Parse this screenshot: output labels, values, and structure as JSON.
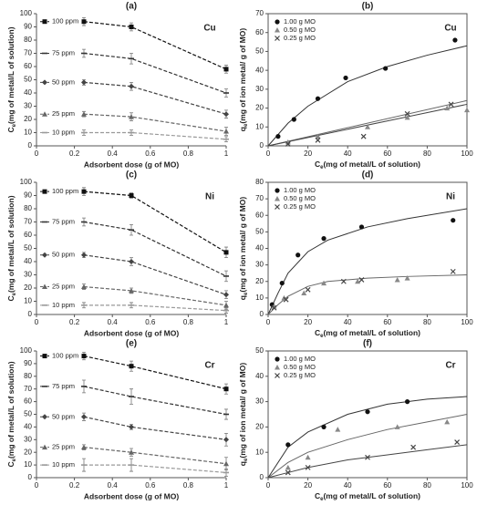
{
  "chart_data": [
    {
      "type": "line",
      "title": "(a)",
      "metal": "Cu",
      "xlabel": "Adsorbent dose (g of MO)",
      "ylabel": {
        "symbol": "C",
        "sub": "e",
        "text": "(mg of metal/L of solution)"
      },
      "x": [
        0.25,
        0.5,
        1
      ],
      "xlim": [
        0,
        1
      ],
      "xticks": [
        0,
        0.2,
        0.4,
        0.6,
        0.8,
        1
      ],
      "ylim": [
        0,
        100
      ],
      "yticks": [
        0,
        10,
        20,
        30,
        40,
        50,
        60,
        70,
        80,
        90,
        100
      ],
      "series": [
        {
          "name": "100 ppm",
          "color": "#111111",
          "marker": "square",
          "values": [
            94,
            90,
            58
          ],
          "errors": [
            3,
            3,
            3
          ]
        },
        {
          "name": "75 ppm",
          "color": "#333333",
          "marker": "dash",
          "values": [
            70,
            66,
            40
          ],
          "errors": [
            3,
            4,
            3
          ]
        },
        {
          "name": "50 ppm",
          "color": "#444444",
          "marker": "diamond",
          "values": [
            48,
            45,
            24
          ],
          "errors": [
            2,
            3,
            3
          ]
        },
        {
          "name": "25 ppm",
          "color": "#666666",
          "marker": "triangle",
          "values": [
            24,
            22,
            11
          ],
          "errors": [
            2,
            3,
            3
          ]
        },
        {
          "name": "10 ppm",
          "color": "#999999",
          "marker": "dash",
          "values": [
            10,
            10,
            5
          ],
          "errors": [
            2,
            2,
            2
          ]
        }
      ]
    },
    {
      "type": "scatter",
      "title": "(b)",
      "metal": "Cu",
      "xlabel": {
        "symbol": "C",
        "sub": "e",
        "text": "(mg of metal/L of solution)"
      },
      "ylabel": {
        "symbol": "q",
        "sub": "e",
        "text": "(mg of ion metal/ g of MO)"
      },
      "xlim": [
        0,
        100
      ],
      "xticks": [
        0,
        20,
        40,
        60,
        80,
        100
      ],
      "ylim": [
        0,
        70
      ],
      "yticks": [
        0,
        10,
        20,
        30,
        40,
        50,
        60,
        70
      ],
      "series": [
        {
          "name": "1.00 g MO",
          "color": "#111111",
          "marker": "circle",
          "x": [
            5,
            13,
            25,
            39,
            59,
            94
          ],
          "values": [
            5,
            14,
            25,
            36,
            41,
            56
          ]
        },
        {
          "name": "0.50 g MO",
          "color": "#888888",
          "marker": "triangle",
          "x": [
            10,
            25,
            50,
            70,
            90,
            100
          ],
          "values": [
            2,
            5,
            10,
            15,
            20,
            19
          ]
        },
        {
          "name": "0.25 g MO",
          "color": "#444444",
          "marker": "cross",
          "x": [
            10,
            25,
            48,
            70,
            92
          ],
          "values": [
            1,
            3,
            5,
            17,
            22
          ]
        }
      ],
      "fits": [
        {
          "color": "#333333",
          "x": [
            0,
            10,
            20,
            40,
            60,
            80,
            100
          ],
          "values": [
            0,
            12,
            21,
            34,
            42,
            48,
            53
          ]
        },
        {
          "color": "#666666",
          "x": [
            0,
            100
          ],
          "values": [
            0,
            24
          ]
        },
        {
          "color": "#444444",
          "x": [
            0,
            100
          ],
          "values": [
            0,
            22
          ]
        }
      ]
    },
    {
      "type": "line",
      "title": "(c)",
      "metal": "Ni",
      "xlabel": "Adsorbent dose (g of MO)",
      "ylabel": {
        "symbol": "C",
        "sub": "e",
        "text": "(mg of metal/L of solution)"
      },
      "x": [
        0.25,
        0.5,
        1
      ],
      "xlim": [
        0,
        1
      ],
      "xticks": [
        0,
        0.2,
        0.4,
        0.6,
        0.8,
        1
      ],
      "ylim": [
        0,
        100
      ],
      "yticks": [
        0,
        10,
        20,
        30,
        40,
        50,
        60,
        70,
        80,
        90,
        100
      ],
      "series": [
        {
          "name": "100 ppm",
          "color": "#111111",
          "marker": "square",
          "values": [
            93,
            90,
            47
          ],
          "errors": [
            3,
            2,
            4
          ]
        },
        {
          "name": "75 ppm",
          "color": "#333333",
          "marker": "dash",
          "values": [
            70,
            64,
            29
          ],
          "errors": [
            3,
            4,
            4
          ]
        },
        {
          "name": "50 ppm",
          "color": "#444444",
          "marker": "diamond",
          "values": [
            45,
            40,
            15
          ],
          "errors": [
            2,
            3,
            3
          ]
        },
        {
          "name": "25 ppm",
          "color": "#666666",
          "marker": "triangle",
          "values": [
            21,
            18,
            7
          ],
          "errors": [
            2,
            2,
            3
          ]
        },
        {
          "name": "10 ppm",
          "color": "#999999",
          "marker": "dash",
          "values": [
            7,
            7,
            3
          ],
          "errors": [
            2,
            2,
            2
          ]
        }
      ]
    },
    {
      "type": "scatter",
      "title": "(d)",
      "metal": "Ni",
      "xlabel": {
        "symbol": "C",
        "sub": "e",
        "text": "(mg of metal/L of solution)"
      },
      "ylabel": {
        "symbol": "q",
        "sub": "e",
        "text": "(mg of ion metal/ g of MO)"
      },
      "xlim": [
        0,
        100
      ],
      "xticks": [
        0,
        20,
        40,
        60,
        80,
        100
      ],
      "ylim": [
        0,
        80
      ],
      "yticks": [
        0,
        10,
        20,
        30,
        40,
        50,
        60,
        70,
        80
      ],
      "series": [
        {
          "name": "1.00 g MO",
          "color": "#111111",
          "marker": "circle",
          "x": [
            2,
            7,
            15,
            28,
            47,
            93
          ],
          "values": [
            6,
            19,
            36,
            46,
            53,
            57
          ]
        },
        {
          "name": "0.50 g MO",
          "color": "#888888",
          "marker": "triangle",
          "x": [
            3,
            8,
            18,
            28,
            45,
            65,
            70
          ],
          "values": [
            5,
            10,
            13,
            19,
            20,
            21,
            22
          ]
        },
        {
          "name": "0.25 g MO",
          "color": "#444444",
          "marker": "cross",
          "x": [
            3,
            9,
            20,
            38,
            47,
            93
          ],
          "values": [
            4,
            9,
            15,
            20,
            21,
            26
          ]
        }
      ],
      "fits": [
        {
          "color": "#333333",
          "x": [
            0,
            5,
            10,
            20,
            30,
            50,
            70,
            100
          ],
          "values": [
            0,
            13,
            25,
            38,
            45,
            53,
            58,
            64
          ]
        },
        {
          "color": "#666666",
          "x": [
            0,
            5,
            10,
            20,
            30,
            50,
            70,
            100
          ],
          "values": [
            0,
            6,
            11,
            17,
            20,
            22,
            23,
            24
          ]
        }
      ]
    },
    {
      "type": "line",
      "title": "(e)",
      "metal": "Cr",
      "xlabel": "Adsorbent dose (g of MO)",
      "ylabel": {
        "symbol": "C",
        "sub": "e",
        "text": "(mg of metal/L of solution)"
      },
      "x": [
        0.25,
        0.5,
        1
      ],
      "xlim": [
        0,
        1
      ],
      "xticks": [
        0,
        0.2,
        0.4,
        0.6,
        0.8,
        1
      ],
      "ylim": [
        0,
        100
      ],
      "yticks": [
        0,
        10,
        20,
        30,
        40,
        50,
        60,
        70,
        80,
        90,
        100
      ],
      "series": [
        {
          "name": "100 ppm",
          "color": "#111111",
          "marker": "square",
          "values": [
            96,
            88,
            70
          ],
          "errors": [
            3,
            4,
            4
          ]
        },
        {
          "name": "75 ppm",
          "color": "#333333",
          "marker": "dash",
          "values": [
            72,
            64,
            50
          ],
          "errors": [
            5,
            6,
            4
          ]
        },
        {
          "name": "50 ppm",
          "color": "#444444",
          "marker": "diamond",
          "values": [
            48,
            40,
            30
          ],
          "errors": [
            3,
            2,
            5
          ]
        },
        {
          "name": "25 ppm",
          "color": "#666666",
          "marker": "triangle",
          "values": [
            24,
            20,
            11
          ],
          "errors": [
            2,
            3,
            5
          ]
        },
        {
          "name": "10 ppm",
          "color": "#999999",
          "marker": "dash",
          "values": [
            10,
            10,
            4
          ],
          "errors": [
            5,
            5,
            3
          ]
        }
      ]
    },
    {
      "type": "scatter",
      "title": "(f)",
      "metal": "Cr",
      "xlabel": {
        "symbol": "C",
        "sub": "e",
        "text": "(mg of  metal/L of solution)"
      },
      "ylabel": {
        "symbol": "q",
        "sub": "e",
        "text": "(mg of ion metal/ g of MO)"
      },
      "xlim": [
        0,
        100
      ],
      "xticks": [
        0,
        20,
        40,
        60,
        80,
        100
      ],
      "ylim": [
        0,
        50
      ],
      "yticks": [
        0,
        10,
        20,
        30,
        40,
        50
      ],
      "series": [
        {
          "name": "1.00 g MO",
          "color": "#111111",
          "marker": "circle",
          "x": [
            10,
            28,
            50,
            70
          ],
          "values": [
            13,
            20,
            26,
            30
          ]
        },
        {
          "name": "0.50 g MO",
          "color": "#888888",
          "marker": "triangle",
          "x": [
            10,
            20,
            35,
            65,
            90
          ],
          "values": [
            4,
            8,
            19,
            20,
            22
          ]
        },
        {
          "name": "0.25 g MO",
          "color": "#444444",
          "marker": "cross",
          "x": [
            10,
            20,
            50,
            73,
            95
          ],
          "values": [
            2,
            4,
            8,
            12,
            14
          ]
        }
      ],
      "fits": [
        {
          "color": "#333333",
          "x": [
            0,
            10,
            20,
            40,
            60,
            80,
            100
          ],
          "values": [
            0,
            12,
            18,
            25,
            29,
            31,
            32
          ]
        },
        {
          "color": "#666666",
          "x": [
            0,
            10,
            20,
            40,
            60,
            80,
            100
          ],
          "values": [
            0,
            6,
            10,
            15,
            19,
            22,
            25
          ]
        },
        {
          "color": "#444444",
          "x": [
            0,
            10,
            20,
            40,
            60,
            80,
            100
          ],
          "values": [
            0,
            2,
            4,
            7,
            9,
            11,
            13
          ]
        }
      ]
    }
  ]
}
